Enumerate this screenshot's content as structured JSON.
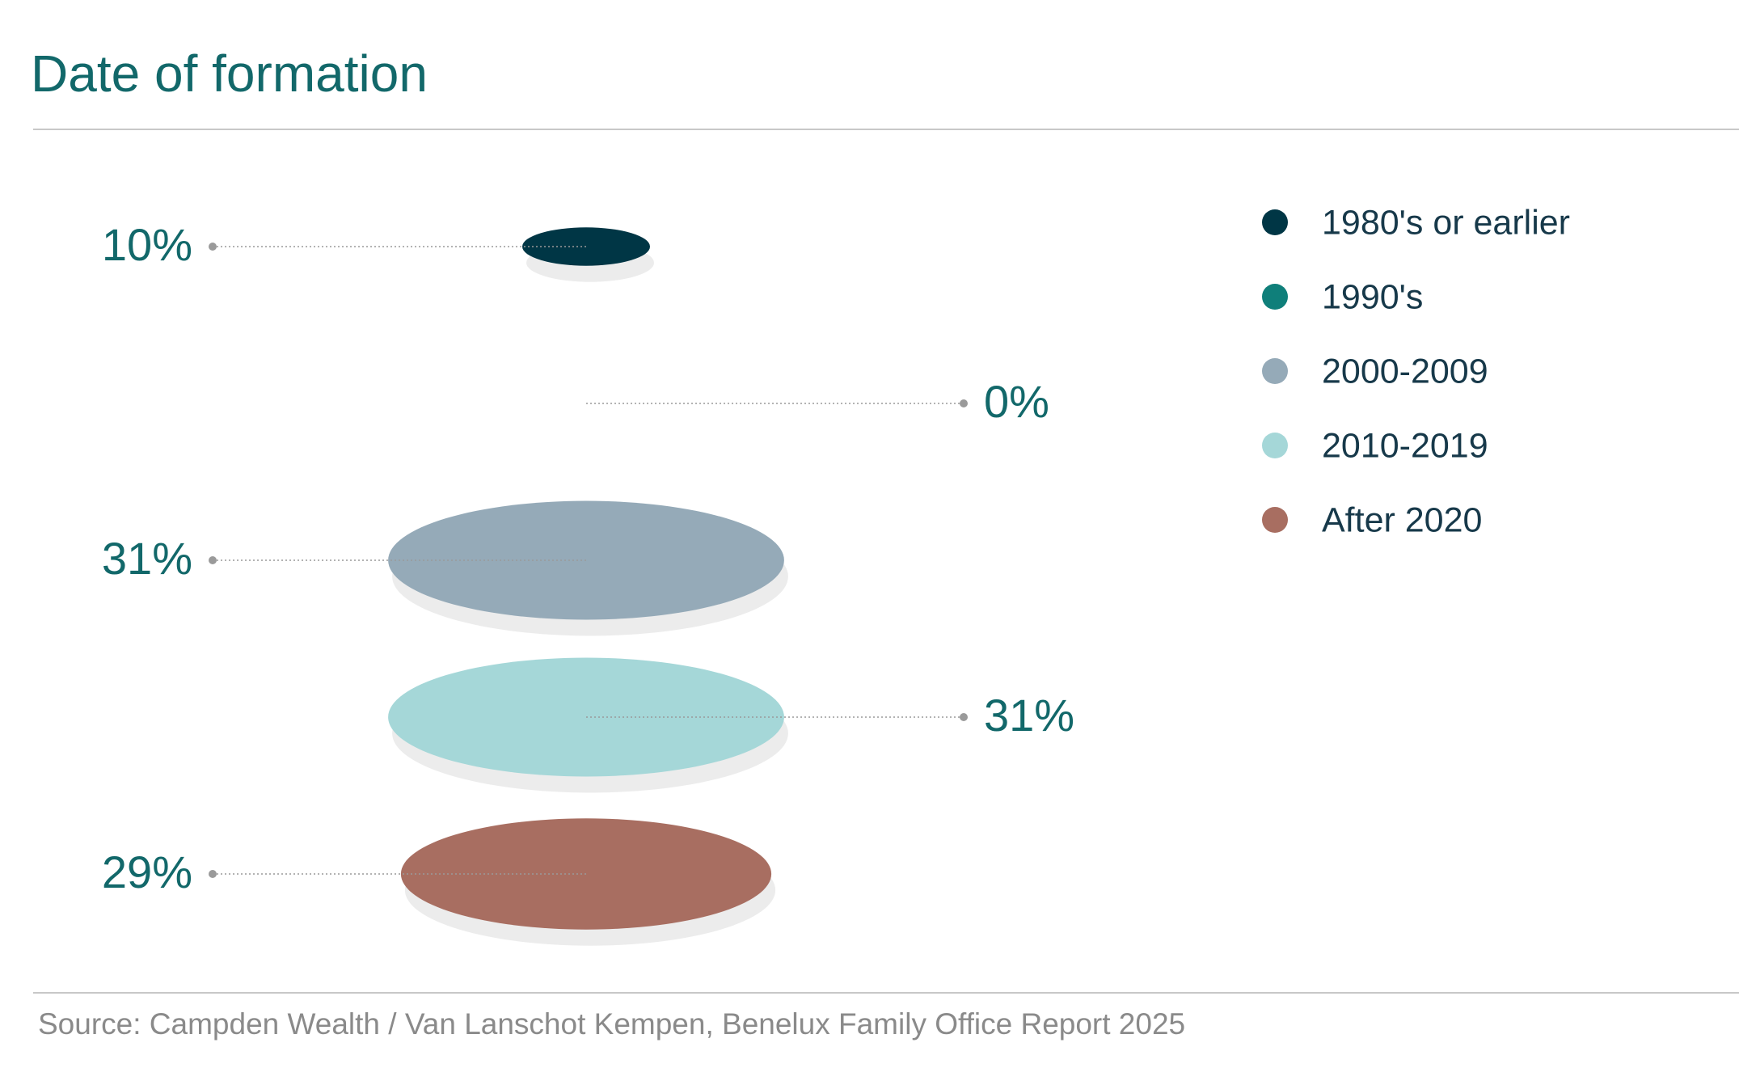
{
  "chart_data": {
    "type": "disc",
    "title": "Date of formation",
    "source": "Source: Campden Wealth / Van Lanschot Kempen, Benelux Family Office Report 2025",
    "categories": [
      "1980's or earlier",
      "1990's",
      "2000-2009",
      "2010-2019",
      "After 2020"
    ],
    "values": [
      10,
      0,
      31,
      31,
      29
    ],
    "value_labels": [
      "10%",
      "0%",
      "31%",
      "31%",
      "29%"
    ],
    "colors": [
      "#003645",
      "#0f7f7a",
      "#95aab8",
      "#a5d7d8",
      "#a86e61"
    ]
  }
}
